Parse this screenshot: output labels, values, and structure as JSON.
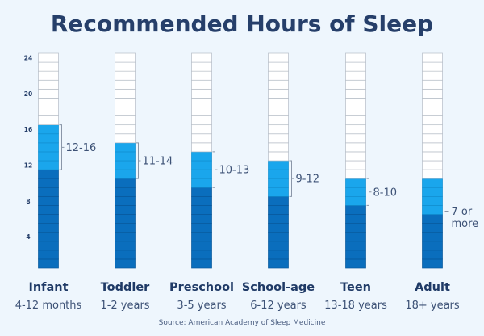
{
  "chart_data": {
    "type": "bar",
    "title": "Recommended Hours of Sleep",
    "ylim": [
      0,
      24
    ],
    "yticks": [
      4,
      8,
      12,
      16,
      20,
      24
    ],
    "grid": false,
    "categories": [
      {
        "label": "Infant",
        "sublabel": "4-12 months",
        "range_label": "12-16",
        "low": 12,
        "high": 16
      },
      {
        "label": "Toddler",
        "sublabel": "1-2 years",
        "range_label": "11-14",
        "low": 11,
        "high": 14
      },
      {
        "label": "Preschool",
        "sublabel": "3-5 years",
        "range_label": "10-13",
        "low": 10,
        "high": 13
      },
      {
        "label": "School-age",
        "sublabel": "6-12 years",
        "range_label": "9-12",
        "low": 9,
        "high": 12
      },
      {
        "label": "Teen",
        "sublabel": "13-18 years",
        "range_label": "8-10",
        "low": 8,
        "high": 10
      },
      {
        "label": "Adult",
        "sublabel": "18+ years",
        "range_label": "7 or more",
        "range_label_lines": [
          "7 or",
          "more"
        ],
        "low": 7,
        "high": 10,
        "open_ended": true
      }
    ],
    "source": "Source: American Academy of Sleep Medicine"
  },
  "colors": {
    "background": "#eef6fd",
    "base": "#0a6ebd",
    "range": "#1aa6ec",
    "empty": "#ffffff",
    "cell_border": "#b5bcc6",
    "title": "#263f6a"
  }
}
